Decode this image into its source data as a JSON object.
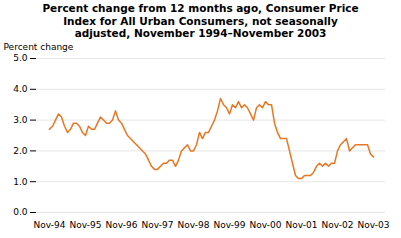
{
  "chart_data": {
    "type": "line",
    "title": "Percent change from 12 months ago, Consumer Price\nIndex for All Urban Consumers, not seasonally\nadjusted, November 1994–November 2003",
    "ylabel": "Percent change",
    "color": "#E87722",
    "grid": true,
    "ylim": [
      0.0,
      5.0
    ],
    "yticks": [
      {
        "value": 0.0,
        "label": "0.0"
      },
      {
        "value": 1.0,
        "label": "1.0"
      },
      {
        "value": 2.0,
        "label": "2.0"
      },
      {
        "value": 3.0,
        "label": "3.0"
      },
      {
        "value": 4.0,
        "label": "4.0"
      },
      {
        "value": 5.0,
        "label": "5.0"
      }
    ],
    "categories": [
      "Nov-94",
      null,
      null,
      null,
      null,
      null,
      null,
      null,
      null,
      null,
      null,
      null,
      "Nov-95",
      null,
      null,
      null,
      null,
      null,
      null,
      null,
      null,
      null,
      null,
      null,
      "Nov-96",
      null,
      null,
      null,
      null,
      null,
      null,
      null,
      null,
      null,
      null,
      null,
      "Nov-97",
      null,
      null,
      null,
      null,
      null,
      null,
      null,
      null,
      null,
      null,
      null,
      "Nov-98",
      null,
      null,
      null,
      null,
      null,
      null,
      null,
      null,
      null,
      null,
      null,
      "Nov-99",
      null,
      null,
      null,
      null,
      null,
      null,
      null,
      null,
      null,
      null,
      null,
      "Nov-00",
      null,
      null,
      null,
      null,
      null,
      null,
      null,
      null,
      null,
      null,
      null,
      "Nov-01",
      null,
      null,
      null,
      null,
      null,
      null,
      null,
      null,
      null,
      null,
      null,
      "Nov-02",
      null,
      null,
      null,
      null,
      null,
      null,
      null,
      null,
      null,
      null,
      null,
      "Nov-03"
    ],
    "values": [
      2.7,
      2.8,
      3.0,
      3.2,
      3.1,
      2.8,
      2.6,
      2.7,
      2.9,
      2.9,
      2.8,
      2.6,
      2.5,
      2.8,
      2.7,
      2.7,
      2.9,
      3.1,
      3.0,
      2.9,
      2.9,
      3.0,
      3.3,
      3.0,
      2.9,
      2.7,
      2.5,
      2.4,
      2.3,
      2.2,
      2.1,
      2.0,
      1.9,
      1.7,
      1.5,
      1.4,
      1.4,
      1.5,
      1.6,
      1.6,
      1.7,
      1.7,
      1.5,
      1.7,
      2.0,
      2.1,
      2.2,
      2.0,
      2.0,
      2.2,
      2.6,
      2.4,
      2.6,
      2.6,
      2.8,
      3.0,
      3.3,
      3.7,
      3.5,
      3.4,
      3.2,
      3.5,
      3.4,
      3.6,
      3.4,
      3.5,
      3.4,
      3.2,
      3.0,
      3.4,
      3.5,
      3.4,
      3.6,
      3.5,
      3.5,
      2.9,
      2.6,
      2.4,
      2.4,
      2.4,
      2.0,
      1.6,
      1.2,
      1.1,
      1.1,
      1.2,
      1.2,
      1.2,
      1.3,
      1.5,
      1.6,
      1.5,
      1.6,
      1.5,
      1.6,
      1.6,
      2.0,
      2.2,
      2.3,
      2.4,
      2.0,
      2.1,
      2.2,
      2.2,
      2.2,
      2.2,
      2.2,
      1.9,
      1.8
    ]
  }
}
